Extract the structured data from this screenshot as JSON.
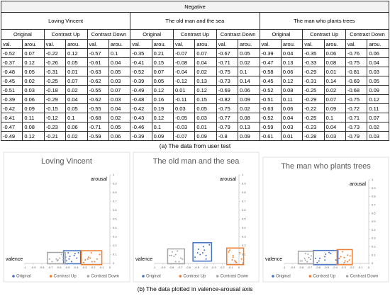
{
  "table": {
    "title": "Negative",
    "movies": [
      "Loving Vincent",
      "The old man and the sea",
      "The man who plants trees"
    ],
    "conditions": [
      "Original",
      "Contrast Up",
      "Contrast Down",
      "Original",
      "Contrast Up",
      "Contrast Down",
      "Original",
      "Contrast Up",
      "Contrast Down"
    ],
    "columns": [
      "val.",
      "arou.",
      "val.",
      "arou.",
      "val.",
      "arou.",
      "val.",
      "arou.",
      "val.",
      "arou.",
      "val.",
      "arou.",
      "val.",
      "arou.",
      "val.",
      "arou.",
      "val.",
      "arou."
    ],
    "rows": [
      [
        -0.52,
        0.07,
        -0.22,
        0.12,
        -0.57,
        0.1,
        -0.35,
        0.21,
        -0.07,
        0.07,
        -0.67,
        0.05,
        -0.39,
        0.04,
        -0.35,
        0.06,
        -0.76,
        0.06
      ],
      [
        -0.37,
        0.12,
        -0.26,
        0.05,
        -0.61,
        0.04,
        -0.41,
        0.15,
        -0.08,
        0.04,
        -0.71,
        0.02,
        -0.47,
        0.13,
        -0.33,
        0.08,
        -0.75,
        0.04
      ],
      [
        -0.48,
        0.05,
        -0.31,
        0.01,
        -0.63,
        0.05,
        -0.52,
        0.07,
        -0.04,
        0.02,
        -0.75,
        0.1,
        -0.58,
        0.06,
        -0.29,
        0.01,
        -0.81,
        0.03
      ],
      [
        -0.45,
        0.02,
        -0.25,
        0.07,
        -0.62,
        0.03,
        -0.39,
        0.05,
        -0.12,
        0.13,
        -0.73,
        0.14,
        -0.45,
        0.12,
        -0.31,
        0.14,
        -0.69,
        0.05
      ],
      [
        -0.51,
        0.03,
        -0.18,
        0.02,
        -0.55,
        0.07,
        -0.49,
        0.12,
        0.01,
        0.12,
        -0.69,
        0.06,
        -0.52,
        0.08,
        -0.25,
        0.02,
        -0.68,
        0.09
      ],
      [
        -0.39,
        0.06,
        -0.29,
        0.04,
        -0.62,
        0.03,
        -0.48,
        0.16,
        -0.11,
        0.15,
        -0.82,
        0.09,
        -0.51,
        0.11,
        -0.29,
        0.07,
        -0.75,
        0.12
      ],
      [
        -0.42,
        0.09,
        -0.15,
        0.05,
        -0.55,
        0.04,
        -0.42,
        0.19,
        0.03,
        0.05,
        -0.75,
        0.02,
        -0.63,
        0.06,
        -0.22,
        0.09,
        -0.72,
        0.11
      ],
      [
        -0.41,
        0.11,
        -0.12,
        0.1,
        -0.68,
        0.02,
        -0.43,
        0.12,
        -0.05,
        0.03,
        -0.77,
        0.08,
        -0.52,
        0.04,
        -0.25,
        0.1,
        -0.71,
        0.07
      ],
      [
        -0.47,
        0.08,
        -0.23,
        0.06,
        -0.71,
        0.05,
        -0.46,
        0.1,
        -0.03,
        0.01,
        -0.79,
        0.13,
        -0.59,
        0.03,
        -0.23,
        0.04,
        -0.73,
        0.02
      ],
      [
        -0.49,
        0.12,
        -0.21,
        0.02,
        -0.59,
        0.06,
        -0.39,
        0.09,
        -0.07,
        0.09,
        -0.8,
        0.09,
        -0.61,
        0.01,
        -0.28,
        0.03,
        -0.79,
        0.03
      ]
    ]
  },
  "captions": [
    "(a) The data from user test",
    "(b) The data plotted in valence-arousal axis"
  ],
  "chart_data": [
    {
      "type": "scatter",
      "title": "Loving Vincent",
      "x_label": "valence",
      "y_label": "arousal",
      "xlim": [
        -1,
        0
      ],
      "ylim": [
        0,
        1
      ],
      "xticks": [
        -1,
        -0.9,
        -0.8,
        -0.7,
        -0.6,
        -0.5,
        -0.4,
        -0.3,
        -0.2,
        -0.1,
        0
      ],
      "yticks": [
        0,
        0.1,
        0.2,
        0.3,
        0.4,
        0.5,
        0.6,
        0.7,
        0.8,
        0.9,
        1
      ],
      "series": [
        {
          "name": "Original",
          "color": "#4472c4",
          "x": [
            -0.52,
            -0.37,
            -0.48,
            -0.45,
            -0.51,
            -0.39,
            -0.42,
            -0.41,
            -0.47,
            -0.49
          ],
          "values": [
            0.07,
            0.12,
            0.05,
            0.02,
            0.03,
            0.06,
            0.09,
            0.11,
            0.08,
            0.12
          ]
        },
        {
          "name": "Contrast Up",
          "color": "#ed7d31",
          "x": [
            -0.22,
            -0.26,
            -0.31,
            -0.25,
            -0.18,
            -0.29,
            -0.15,
            -0.12,
            -0.23,
            -0.21
          ],
          "values": [
            0.12,
            0.05,
            0.01,
            0.07,
            0.02,
            0.04,
            0.05,
            0.1,
            0.06,
            0.02
          ]
        },
        {
          "name": "Contrast Down",
          "color": "#a5a5a5",
          "x": [
            -0.57,
            -0.61,
            -0.63,
            -0.62,
            -0.55,
            -0.62,
            -0.55,
            -0.68,
            -0.71,
            -0.59
          ],
          "values": [
            0.1,
            0.04,
            0.05,
            0.03,
            0.07,
            0.03,
            0.04,
            0.02,
            0.05,
            0.06
          ]
        }
      ]
    },
    {
      "type": "scatter",
      "title": "The old man and the sea",
      "x_label": "valence",
      "y_label": "arousal",
      "xlim": [
        -1,
        0
      ],
      "ylim": [
        0,
        1
      ],
      "xticks": [
        -1,
        -0.9,
        -0.8,
        -0.7,
        -0.6,
        -0.5,
        -0.4,
        -0.3,
        -0.2,
        -0.1,
        0
      ],
      "yticks": [
        0,
        0.1,
        0.2,
        0.3,
        0.4,
        0.5,
        0.6,
        0.7,
        0.8,
        0.9,
        1
      ],
      "series": [
        {
          "name": "Original",
          "color": "#4472c4",
          "x": [
            -0.35,
            -0.41,
            -0.52,
            -0.39,
            -0.49,
            -0.48,
            -0.42,
            -0.43,
            -0.46,
            -0.39
          ],
          "values": [
            0.21,
            0.15,
            0.07,
            0.05,
            0.12,
            0.16,
            0.19,
            0.12,
            0.1,
            0.09
          ]
        },
        {
          "name": "Contrast Up",
          "color": "#ed7d31",
          "x": [
            -0.07,
            -0.08,
            -0.04,
            -0.12,
            0.01,
            -0.11,
            0.03,
            -0.05,
            -0.03,
            -0.07
          ],
          "values": [
            0.07,
            0.04,
            0.02,
            0.13,
            0.12,
            0.15,
            0.05,
            0.03,
            0.01,
            0.09
          ]
        },
        {
          "name": "Contrast Down",
          "color": "#a5a5a5",
          "x": [
            -0.67,
            -0.71,
            -0.75,
            -0.73,
            -0.69,
            -0.82,
            -0.75,
            -0.77,
            -0.79,
            -0.8
          ],
          "values": [
            0.05,
            0.02,
            0.1,
            0.14,
            0.06,
            0.09,
            0.02,
            0.08,
            0.13,
            0.09
          ]
        }
      ]
    },
    {
      "type": "scatter",
      "title": "The man who plants trees",
      "x_label": "valence",
      "y_label": "arousal",
      "xlim": [
        -1,
        0
      ],
      "ylim": [
        0,
        1
      ],
      "xticks": [
        -1,
        -0.9,
        -0.8,
        -0.7,
        -0.6,
        -0.5,
        -0.4,
        -0.3,
        -0.2,
        -0.1,
        0
      ],
      "yticks": [
        0,
        0.1,
        0.2,
        0.3,
        0.4,
        0.5,
        0.6,
        0.7,
        0.8,
        0.9,
        1
      ],
      "series": [
        {
          "name": "Original",
          "color": "#4472c4",
          "x": [
            -0.39,
            -0.47,
            -0.58,
            -0.45,
            -0.52,
            -0.51,
            -0.63,
            -0.52,
            -0.59,
            -0.61
          ],
          "values": [
            0.04,
            0.13,
            0.06,
            0.12,
            0.08,
            0.11,
            0.06,
            0.04,
            0.03,
            0.01
          ]
        },
        {
          "name": "Contrast Up",
          "color": "#ed7d31",
          "x": [
            -0.35,
            -0.33,
            -0.29,
            -0.31,
            -0.25,
            -0.29,
            -0.22,
            -0.25,
            -0.23,
            -0.28
          ],
          "values": [
            0.06,
            0.08,
            0.01,
            0.14,
            0.02,
            0.07,
            0.09,
            0.1,
            0.04,
            0.03
          ]
        },
        {
          "name": "Contrast Down",
          "color": "#a5a5a5",
          "x": [
            -0.76,
            -0.75,
            -0.81,
            -0.69,
            -0.68,
            -0.75,
            -0.72,
            -0.71,
            -0.73,
            -0.79
          ],
          "values": [
            0.06,
            0.04,
            0.03,
            0.05,
            0.09,
            0.12,
            0.11,
            0.07,
            0.02,
            0.03
          ]
        }
      ]
    }
  ]
}
